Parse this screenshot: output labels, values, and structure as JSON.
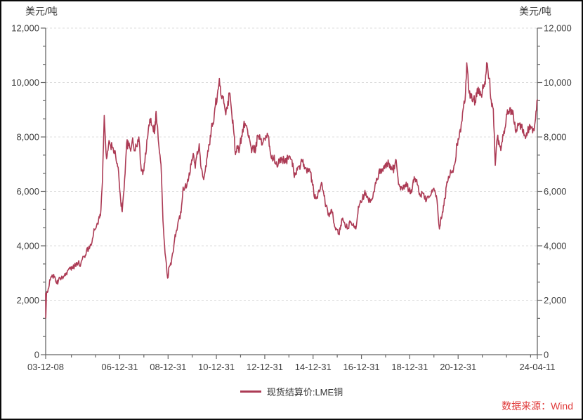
{
  "chart": {
    "source_note": "数据来源：Wind",
    "source_color": "#E03B3B",
    "background": "#FFFFFF",
    "border_color": "#0A0A0A"
  },
  "chart_data": {
    "type": "line",
    "title": "",
    "ylabel_left": "美元/吨",
    "ylabel_right": "美元/吨",
    "ylim": [
      0,
      12000
    ],
    "y_major_step": 2000,
    "y_minor_divisions": 3,
    "y_tick_labels": [
      "0",
      "2,000",
      "4,000",
      "6,000",
      "8,000",
      "10,000",
      "12,000"
    ],
    "grid": "horizontal-dashed-at-majors",
    "grid_color": "#DCDCDC",
    "axis_color": "#666666",
    "tick_label_color": "#404040",
    "legend_position": "bottom-center",
    "x_range": [
      "2003-12-08",
      "2024-04-11"
    ],
    "x_major_ticks": [
      {
        "date": "2003-12-08",
        "label": "03-12-08"
      },
      {
        "date": "2006-12-31",
        "label": "06-12-31"
      },
      {
        "date": "2008-12-31",
        "label": "08-12-31"
      },
      {
        "date": "2010-12-31",
        "label": "10-12-31"
      },
      {
        "date": "2012-12-31",
        "label": "12-12-31"
      },
      {
        "date": "2014-12-31",
        "label": "14-12-31"
      },
      {
        "date": "2016-12-31",
        "label": "16-12-31"
      },
      {
        "date": "2018-12-31",
        "label": "18-12-31"
      },
      {
        "date": "2020-12-31",
        "label": "20-12-31"
      },
      {
        "date": "2024-04-11",
        "label": "24-04-11"
      }
    ],
    "x_minor_tick_dates": [
      "2004-12-31",
      "2005-12-31",
      "2007-12-31",
      "2009-12-31",
      "2011-12-31",
      "2013-12-31",
      "2015-12-31",
      "2017-12-31",
      "2019-12-31",
      "2021-12-31",
      "2022-12-31",
      "2023-12-31"
    ],
    "series": [
      {
        "name": "现货结算价:LME铜",
        "color": "#AC3B55",
        "unit": "美元/吨",
        "points": [
          [
            "2003-12-08",
            2254
          ],
          [
            "2003-12-10",
            1350
          ],
          [
            "2003-12-22",
            2290
          ],
          [
            "2004-01-15",
            2420
          ],
          [
            "2004-02-15",
            2740
          ],
          [
            "2004-03-15",
            2930
          ],
          [
            "2004-04-15",
            2850
          ],
          [
            "2004-05-15",
            2650
          ],
          [
            "2004-06-15",
            2690
          ],
          [
            "2004-07-15",
            2810
          ],
          [
            "2004-08-15",
            2870
          ],
          [
            "2004-09-15",
            2890
          ],
          [
            "2004-10-15",
            3010
          ],
          [
            "2004-11-15",
            3120
          ],
          [
            "2004-12-15",
            3150
          ],
          [
            "2005-01-15",
            3170
          ],
          [
            "2005-02-15",
            3250
          ],
          [
            "2005-03-15",
            3380
          ],
          [
            "2005-04-15",
            3400
          ],
          [
            "2005-05-15",
            3250
          ],
          [
            "2005-06-15",
            3520
          ],
          [
            "2005-07-15",
            3620
          ],
          [
            "2005-08-15",
            3800
          ],
          [
            "2005-09-15",
            3860
          ],
          [
            "2005-10-15",
            4060
          ],
          [
            "2005-11-15",
            4270
          ],
          [
            "2005-12-15",
            4580
          ],
          [
            "2006-01-15",
            4730
          ],
          [
            "2006-02-15",
            4980
          ],
          [
            "2006-03-15",
            5100
          ],
          [
            "2006-04-15",
            6390
          ],
          [
            "2006-05-11",
            8790
          ],
          [
            "2006-06-15",
            7200
          ],
          [
            "2006-07-15",
            7710
          ],
          [
            "2006-08-15",
            7690
          ],
          [
            "2006-09-15",
            7600
          ],
          [
            "2006-10-15",
            7500
          ],
          [
            "2006-11-15",
            7030
          ],
          [
            "2006-12-15",
            6690
          ],
          [
            "2007-01-15",
            5670
          ],
          [
            "2007-02-07",
            5250
          ],
          [
            "2007-03-15",
            6450
          ],
          [
            "2007-04-15",
            7770
          ],
          [
            "2007-05-15",
            7680
          ],
          [
            "2007-06-15",
            7480
          ],
          [
            "2007-07-15",
            7970
          ],
          [
            "2007-08-15",
            7510
          ],
          [
            "2007-09-15",
            7650
          ],
          [
            "2007-10-15",
            8000
          ],
          [
            "2007-11-15",
            6970
          ],
          [
            "2007-12-15",
            6620
          ],
          [
            "2008-01-15",
            7060
          ],
          [
            "2008-02-15",
            7890
          ],
          [
            "2008-03-15",
            8440
          ],
          [
            "2008-04-15",
            8680
          ],
          [
            "2008-05-15",
            8380
          ],
          [
            "2008-06-15",
            8260
          ],
          [
            "2008-07-03",
            8940
          ],
          [
            "2008-08-15",
            7640
          ],
          [
            "2008-09-15",
            6990
          ],
          [
            "2008-10-15",
            4930
          ],
          [
            "2008-11-15",
            3720
          ],
          [
            "2008-12-24",
            2815
          ],
          [
            "2009-01-15",
            3220
          ],
          [
            "2009-02-15",
            3310
          ],
          [
            "2009-03-15",
            3750
          ],
          [
            "2009-04-15",
            4410
          ],
          [
            "2009-05-15",
            4570
          ],
          [
            "2009-06-15",
            5010
          ],
          [
            "2009-07-15",
            5220
          ],
          [
            "2009-08-15",
            6160
          ],
          [
            "2009-09-15",
            6200
          ],
          [
            "2009-10-15",
            6290
          ],
          [
            "2009-11-15",
            6680
          ],
          [
            "2009-12-15",
            6980
          ],
          [
            "2010-01-15",
            7390
          ],
          [
            "2010-02-15",
            6850
          ],
          [
            "2010-03-15",
            7460
          ],
          [
            "2010-04-15",
            7750
          ],
          [
            "2010-05-15",
            6840
          ],
          [
            "2010-06-15",
            6500
          ],
          [
            "2010-07-15",
            6740
          ],
          [
            "2010-08-15",
            7280
          ],
          [
            "2010-09-15",
            7700
          ],
          [
            "2010-10-15",
            8290
          ],
          [
            "2010-11-15",
            8470
          ],
          [
            "2010-12-15",
            9150
          ],
          [
            "2011-01-15",
            9560
          ],
          [
            "2011-02-14",
            10150
          ],
          [
            "2011-03-15",
            9500
          ],
          [
            "2011-04-15",
            9480
          ],
          [
            "2011-05-15",
            8930
          ],
          [
            "2011-06-15",
            9040
          ],
          [
            "2011-07-15",
            9620
          ],
          [
            "2011-08-15",
            9000
          ],
          [
            "2011-09-15",
            8300
          ],
          [
            "2011-10-15",
            7350
          ],
          [
            "2011-11-15",
            7580
          ],
          [
            "2011-12-15",
            7560
          ],
          [
            "2012-01-15",
            8040
          ],
          [
            "2012-02-15",
            8420
          ],
          [
            "2012-03-15",
            8450
          ],
          [
            "2012-04-15",
            8260
          ],
          [
            "2012-05-15",
            7920
          ],
          [
            "2012-06-15",
            7420
          ],
          [
            "2012-07-15",
            7580
          ],
          [
            "2012-08-15",
            7500
          ],
          [
            "2012-09-15",
            8070
          ],
          [
            "2012-10-15",
            8080
          ],
          [
            "2012-11-15",
            7700
          ],
          [
            "2012-12-15",
            7960
          ],
          [
            "2013-01-15",
            8050
          ],
          [
            "2013-02-15",
            8060
          ],
          [
            "2013-03-15",
            7660
          ],
          [
            "2013-04-15",
            7200
          ],
          [
            "2013-05-15",
            7240
          ],
          [
            "2013-06-15",
            7000
          ],
          [
            "2013-07-15",
            6910
          ],
          [
            "2013-08-15",
            7190
          ],
          [
            "2013-09-15",
            7160
          ],
          [
            "2013-10-15",
            7200
          ],
          [
            "2013-11-15",
            7070
          ],
          [
            "2013-12-15",
            7210
          ],
          [
            "2014-01-15",
            7290
          ],
          [
            "2014-02-15",
            7150
          ],
          [
            "2014-03-15",
            6650
          ],
          [
            "2014-04-15",
            6670
          ],
          [
            "2014-05-15",
            6890
          ],
          [
            "2014-06-15",
            6810
          ],
          [
            "2014-07-15",
            7110
          ],
          [
            "2014-08-15",
            7000
          ],
          [
            "2014-09-15",
            6870
          ],
          [
            "2014-10-15",
            6740
          ],
          [
            "2014-11-15",
            6710
          ],
          [
            "2014-12-15",
            6420
          ],
          [
            "2015-01-15",
            5830
          ],
          [
            "2015-02-15",
            5730
          ],
          [
            "2015-03-15",
            5940
          ],
          [
            "2015-04-15",
            6040
          ],
          [
            "2015-05-15",
            6290
          ],
          [
            "2015-06-15",
            5830
          ],
          [
            "2015-07-15",
            5460
          ],
          [
            "2015-08-15",
            5130
          ],
          [
            "2015-09-15",
            5220
          ],
          [
            "2015-10-15",
            5220
          ],
          [
            "2015-11-15",
            4800
          ],
          [
            "2015-12-15",
            4640
          ],
          [
            "2016-01-15",
            4430
          ],
          [
            "2016-02-15",
            4600
          ],
          [
            "2016-03-15",
            4950
          ],
          [
            "2016-04-15",
            4870
          ],
          [
            "2016-05-15",
            4700
          ],
          [
            "2016-06-15",
            4640
          ],
          [
            "2016-07-15",
            4860
          ],
          [
            "2016-08-15",
            4750
          ],
          [
            "2016-09-15",
            4720
          ],
          [
            "2016-10-15",
            4730
          ],
          [
            "2016-11-15",
            5450
          ],
          [
            "2016-12-15",
            5660
          ],
          [
            "2017-01-15",
            5750
          ],
          [
            "2017-02-15",
            5940
          ],
          [
            "2017-03-15",
            5820
          ],
          [
            "2017-04-15",
            5680
          ],
          [
            "2017-05-15",
            5600
          ],
          [
            "2017-06-15",
            5720
          ],
          [
            "2017-07-15",
            5990
          ],
          [
            "2017-08-15",
            6480
          ],
          [
            "2017-09-15",
            6580
          ],
          [
            "2017-10-15",
            6810
          ],
          [
            "2017-11-15",
            6830
          ],
          [
            "2017-12-15",
            6840
          ],
          [
            "2018-01-15",
            7070
          ],
          [
            "2018-02-15",
            7010
          ],
          [
            "2018-03-15",
            6800
          ],
          [
            "2018-04-15",
            6850
          ],
          [
            "2018-05-15",
            6830
          ],
          [
            "2018-06-08",
            7150
          ],
          [
            "2018-07-15",
            6250
          ],
          [
            "2018-08-15",
            6050
          ],
          [
            "2018-09-15",
            6050
          ],
          [
            "2018-10-15",
            6220
          ],
          [
            "2018-11-15",
            6200
          ],
          [
            "2018-12-15",
            6080
          ],
          [
            "2019-01-15",
            5930
          ],
          [
            "2019-02-15",
            6280
          ],
          [
            "2019-03-15",
            6440
          ],
          [
            "2019-04-15",
            6440
          ],
          [
            "2019-05-15",
            6020
          ],
          [
            "2019-06-15",
            5870
          ],
          [
            "2019-07-15",
            5940
          ],
          [
            "2019-08-15",
            5710
          ],
          [
            "2019-09-15",
            5750
          ],
          [
            "2019-10-15",
            5760
          ],
          [
            "2019-11-15",
            5860
          ],
          [
            "2019-12-15",
            6070
          ],
          [
            "2020-01-15",
            6030
          ],
          [
            "2020-02-15",
            5690
          ],
          [
            "2020-03-23",
            4620
          ],
          [
            "2020-04-15",
            5050
          ],
          [
            "2020-05-15",
            5240
          ],
          [
            "2020-06-15",
            5740
          ],
          [
            "2020-07-15",
            6350
          ],
          [
            "2020-08-15",
            6500
          ],
          [
            "2020-09-15",
            6710
          ],
          [
            "2020-10-15",
            6700
          ],
          [
            "2020-11-15",
            7060
          ],
          [
            "2020-12-15",
            7760
          ],
          [
            "2021-01-15",
            7970
          ],
          [
            "2021-02-15",
            8460
          ],
          [
            "2021-03-15",
            9000
          ],
          [
            "2021-04-15",
            9340
          ],
          [
            "2021-05-10",
            10725
          ],
          [
            "2021-06-15",
            9610
          ],
          [
            "2021-07-15",
            9440
          ],
          [
            "2021-08-15",
            9370
          ],
          [
            "2021-09-15",
            9320
          ],
          [
            "2021-10-15",
            9780
          ],
          [
            "2021-11-15",
            9770
          ],
          [
            "2021-12-15",
            9550
          ],
          [
            "2022-01-15",
            9780
          ],
          [
            "2022-02-15",
            9940
          ],
          [
            "2022-03-07",
            10730
          ],
          [
            "2022-04-15",
            10160
          ],
          [
            "2022-05-15",
            9360
          ],
          [
            "2022-06-15",
            9030
          ],
          [
            "2022-07-15",
            6960
          ],
          [
            "2022-08-15",
            7960
          ],
          [
            "2022-09-15",
            7740
          ],
          [
            "2022-10-15",
            7630
          ],
          [
            "2022-11-15",
            8050
          ],
          [
            "2022-12-15",
            8370
          ],
          [
            "2023-01-15",
            9000
          ],
          [
            "2023-02-15",
            8950
          ],
          [
            "2023-03-15",
            8850
          ],
          [
            "2023-04-15",
            8820
          ],
          [
            "2023-05-15",
            8230
          ],
          [
            "2023-06-15",
            8390
          ],
          [
            "2023-07-15",
            8470
          ],
          [
            "2023-08-15",
            8350
          ],
          [
            "2023-09-15",
            8270
          ],
          [
            "2023-10-15",
            7940
          ],
          [
            "2023-11-15",
            8170
          ],
          [
            "2023-12-15",
            8460
          ],
          [
            "2024-01-15",
            8340
          ],
          [
            "2024-02-15",
            8310
          ],
          [
            "2024-03-15",
            8680
          ],
          [
            "2024-04-11",
            9365
          ]
        ]
      }
    ]
  }
}
